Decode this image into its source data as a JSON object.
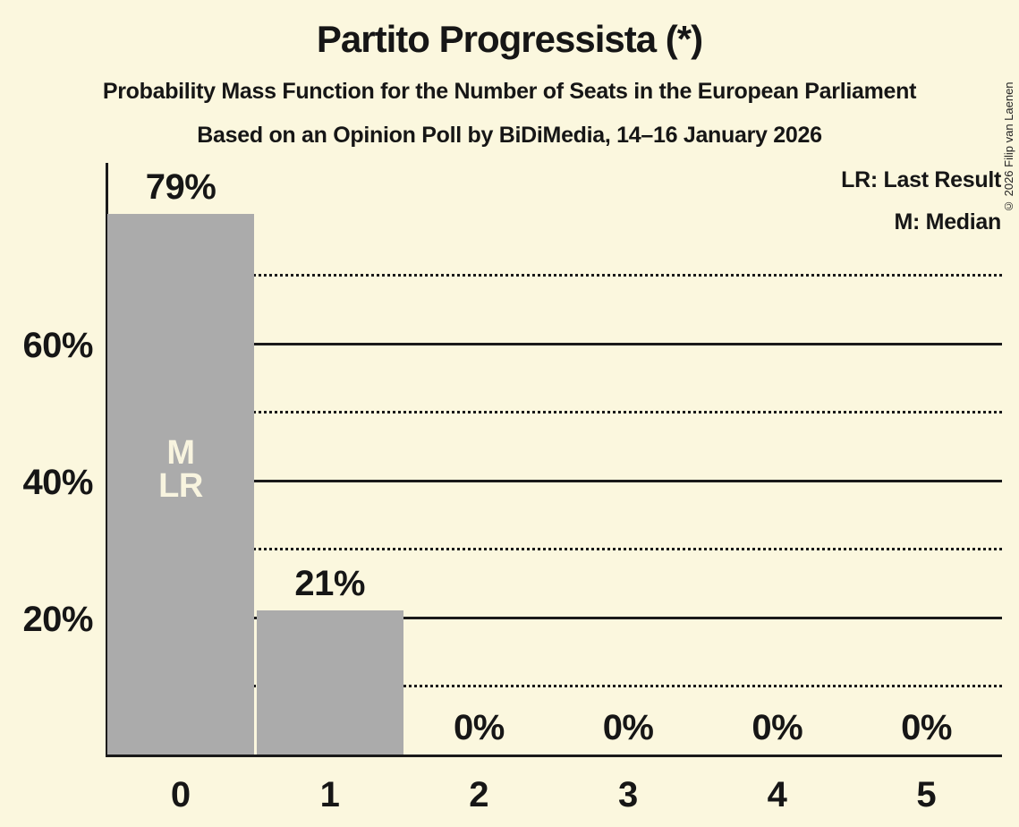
{
  "page": {
    "background_color": "#FBF7DE",
    "text_color": "#161616"
  },
  "header": {
    "title": "Partito Progressista (*)",
    "subtitle": "Probability Mass Function for the Number of Seats in the European Parliament",
    "subsubtitle": "Based on an Opinion Poll by BiDiMedia, 14–16 January 2026",
    "copyright": "© 2026 Filip van Laenen"
  },
  "legend": {
    "lines": [
      "LR: Last Result",
      "M: Median"
    ]
  },
  "chart_data": {
    "type": "bar",
    "title": "Partito Progressista (*)",
    "subtitle": "Probability Mass Function for the Number of Seats in the European Parliament",
    "source": "Based on an Opinion Poll by BiDiMedia, 14–16 January 2026",
    "categories": [
      "0",
      "1",
      "2",
      "3",
      "4",
      "5"
    ],
    "values": [
      79,
      21,
      0,
      0,
      0,
      0
    ],
    "value_labels": [
      "79%",
      "21%",
      "0%",
      "0%",
      "0%",
      "0%"
    ],
    "bar_annotations": [
      {
        "category_index": 0,
        "lines": [
          "M",
          "LR"
        ]
      }
    ],
    "xlabel": "",
    "ylabel": "",
    "ylim": [
      0,
      86.5
    ],
    "yticks": [
      {
        "value": 20,
        "label": "20%",
        "line_style": "solid"
      },
      {
        "value": 40,
        "label": "40%",
        "line_style": "solid"
      },
      {
        "value": 60,
        "label": "60%",
        "line_style": "solid"
      }
    ],
    "minor_gridlines": {
      "values": [
        10,
        30,
        50,
        70
      ],
      "line_style": "dotted"
    },
    "grid": "horizontal",
    "legend_position": "top-right",
    "legend_entries": [
      "LR: Last Result",
      "M: Median"
    ],
    "bar_color": "#ABABAB",
    "bar_annotation_color": "#F8F4DF",
    "axis_color": "#1A1A1A",
    "background_color": "#FBF7DE"
  }
}
